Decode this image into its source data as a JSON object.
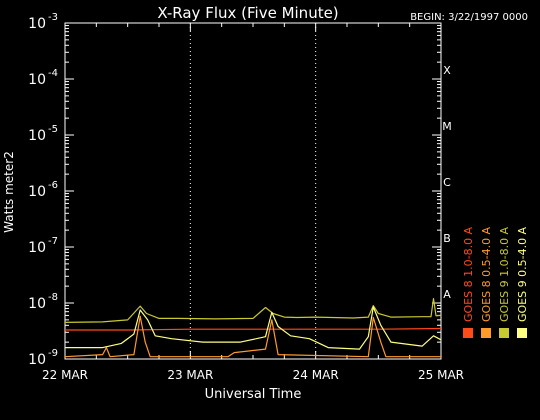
{
  "chart_data": {
    "type": "line",
    "title": "X-Ray Flux (Five Minute)",
    "begin_label": "BEGIN: 3/22/1997 0000",
    "xlabel": "Universal Time",
    "ylabel": "Watts meter2",
    "x_ticks": [
      "22 MAR",
      "23 MAR",
      "24 MAR",
      "25 MAR"
    ],
    "y_scale": "log",
    "y_tick_exponents": [
      -9,
      -8,
      -7,
      -6,
      -5,
      -4,
      -3
    ],
    "y_tick_base": "10",
    "class_labels": [
      {
        "label": "A",
        "exponent": -8
      },
      {
        "label": "B",
        "exponent": -7
      },
      {
        "label": "C",
        "exponent": -6
      },
      {
        "label": "M",
        "exponent": -5
      },
      {
        "label": "X",
        "exponent": -4
      }
    ],
    "grid": "vertical dotted at day boundaries",
    "legend_placement": "right, vertical",
    "series": [
      {
        "name": "GOES 8 1.0-8.0 A",
        "color": "#ff4a1a",
        "points": [
          [
            0,
            3.3e-09
          ],
          [
            0.5,
            3.3e-09
          ],
          [
            1.0,
            3.4e-09
          ],
          [
            1.5,
            3.4e-09
          ],
          [
            2.0,
            3.4e-09
          ],
          [
            2.5,
            3.4e-09
          ],
          [
            3.0,
            3.5e-09
          ]
        ]
      },
      {
        "name": "GOES 8 0.5-4.0 A",
        "color": "#ff9a2a",
        "points": [
          [
            0,
            1.1e-09
          ],
          [
            0.3,
            1.2e-09
          ],
          [
            0.33,
            1.6e-09
          ],
          [
            0.36,
            1.1e-09
          ],
          [
            0.55,
            1.2e-09
          ],
          [
            0.6,
            5.8e-09
          ],
          [
            0.64,
            2e-09
          ],
          [
            0.68,
            1.1e-09
          ],
          [
            1.3,
            1.1e-09
          ],
          [
            1.35,
            1.3e-09
          ],
          [
            1.6,
            1.5e-09
          ],
          [
            1.65,
            5e-09
          ],
          [
            1.7,
            1.2e-09
          ],
          [
            2.42,
            1.1e-09
          ],
          [
            2.46,
            5.5e-09
          ],
          [
            2.52,
            2e-09
          ],
          [
            2.56,
            1.1e-09
          ],
          [
            3.0,
            1.1e-09
          ]
        ]
      },
      {
        "name": "GOES 9 1.0-8.0 A",
        "color": "#c8c830",
        "points": [
          [
            0,
            4.5e-09
          ],
          [
            0.3,
            4.6e-09
          ],
          [
            0.5,
            5e-09
          ],
          [
            0.6,
            8.8e-09
          ],
          [
            0.65,
            6.5e-09
          ],
          [
            0.75,
            5.3e-09
          ],
          [
            0.9,
            5.3e-09
          ],
          [
            1.2,
            5.2e-09
          ],
          [
            1.5,
            5.3e-09
          ],
          [
            1.6,
            8.3e-09
          ],
          [
            1.66,
            6.5e-09
          ],
          [
            1.75,
            5.6e-09
          ],
          [
            1.85,
            5.5e-09
          ],
          [
            2.0,
            5.6e-09
          ],
          [
            2.3,
            5.4e-09
          ],
          [
            2.42,
            5.6e-09
          ],
          [
            2.46,
            9e-09
          ],
          [
            2.5,
            6.5e-09
          ],
          [
            2.6,
            5.6e-09
          ],
          [
            2.85,
            5.7e-09
          ],
          [
            2.92,
            5.7e-09
          ],
          [
            2.94,
            1.2e-08
          ],
          [
            2.96,
            5.9e-09
          ],
          [
            3.0,
            6e-09
          ]
        ]
      },
      {
        "name": "GOES 9 0.5-4.0 A",
        "color": "#ffff80",
        "points": [
          [
            0,
            1.6e-09
          ],
          [
            0.3,
            1.6e-09
          ],
          [
            0.45,
            1.9e-09
          ],
          [
            0.55,
            2.8e-09
          ],
          [
            0.6,
            7.5e-09
          ],
          [
            0.66,
            5e-09
          ],
          [
            0.72,
            2.6e-09
          ],
          [
            0.85,
            2.3e-09
          ],
          [
            1.1,
            2e-09
          ],
          [
            1.4,
            2e-09
          ],
          [
            1.6,
            2.5e-09
          ],
          [
            1.65,
            6.8e-09
          ],
          [
            1.7,
            3.8e-09
          ],
          [
            1.8,
            2.6e-09
          ],
          [
            1.95,
            2.3e-09
          ],
          [
            2.1,
            1.6e-09
          ],
          [
            2.35,
            1.5e-09
          ],
          [
            2.42,
            2.5e-09
          ],
          [
            2.46,
            8.5e-09
          ],
          [
            2.52,
            4e-09
          ],
          [
            2.6,
            2e-09
          ],
          [
            2.85,
            1.7e-09
          ],
          [
            2.94,
            2.6e-09
          ],
          [
            3.0,
            2.2e-09
          ]
        ]
      }
    ]
  }
}
